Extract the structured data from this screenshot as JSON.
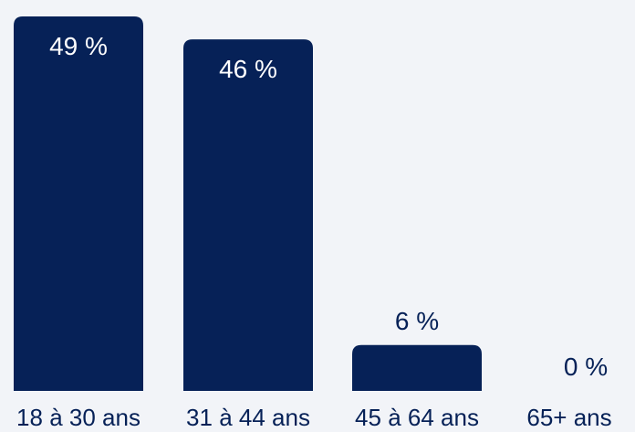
{
  "colors": {
    "background": "#f2f4f8",
    "bar": "#062157",
    "bar_label_inside": "#ffffff",
    "bar_label_outside": "#062157",
    "category_label": "#062157"
  },
  "chart_data": {
    "type": "bar",
    "categories": [
      "18 à 30 ans",
      "31 à 44 ans",
      "45 à 64 ans",
      "65+ ans"
    ],
    "values": [
      49,
      46,
      6,
      0
    ],
    "data_labels": [
      "49 %",
      "46 %",
      "6 %",
      "0 %"
    ],
    "title": "",
    "xlabel": "",
    "ylabel": "",
    "ylim": [
      0,
      49
    ],
    "grid": false,
    "legend": "none"
  }
}
